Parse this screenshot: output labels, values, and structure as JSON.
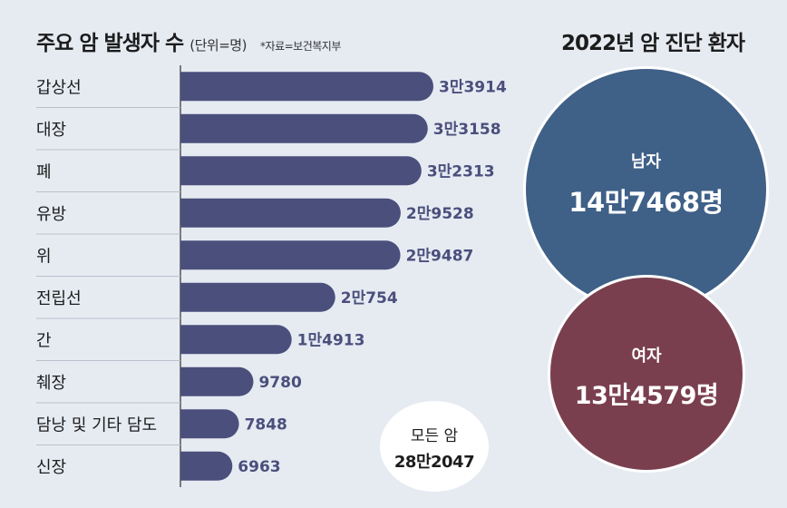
{
  "chart_data": [
    {
      "type": "bar",
      "orientation": "horizontal",
      "title": "주요 암 발생자 수",
      "unit": "(단위=명)",
      "source": "*자료=보건복지부",
      "categories": [
        "갑상선",
        "대장",
        "폐",
        "유방",
        "위",
        "전립선",
        "간",
        "췌장",
        "담낭 및 기타 담도",
        "신장"
      ],
      "values": [
        33914,
        33158,
        32313,
        29528,
        29487,
        20754,
        14913,
        9780,
        7848,
        6963
      ],
      "value_labels": [
        "3만3914",
        "3만3158",
        "3만2313",
        "2만9528",
        "2만9487",
        "2만754",
        "1만4913",
        "9780",
        "7848",
        "6963"
      ],
      "xlim": [
        0,
        33914
      ],
      "bar_color": "#4a4f7c",
      "total": {
        "label": "모든 암",
        "value": 282047,
        "value_label": "28만2047"
      }
    },
    {
      "type": "bubble",
      "title": "2022년 암 진단 환자",
      "items": [
        {
          "label": "남자",
          "value": 147468,
          "value_label": "14만7468명",
          "color": "#3f6087"
        },
        {
          "label": "여자",
          "value": 134579,
          "value_label": "13만4579명",
          "color": "#7a3f4f"
        }
      ]
    }
  ]
}
